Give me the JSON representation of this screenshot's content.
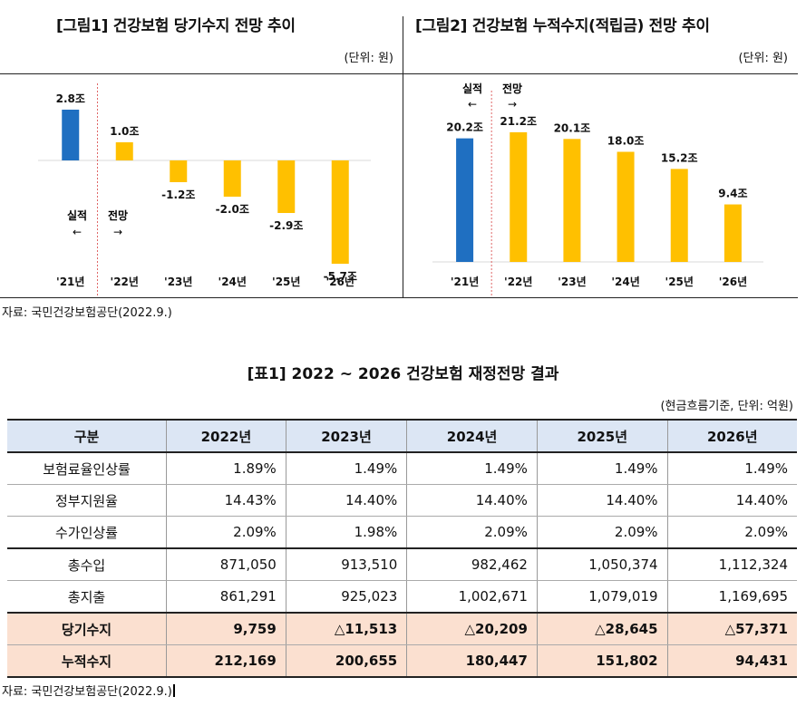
{
  "figure1": {
    "title": "[그림1] 건강보험 당기수지 전망 추이",
    "unit": "(단위: 원)",
    "marker_actual": "실적",
    "marker_forecast": "전망",
    "arrow_left": "←",
    "arrow_right": "→",
    "chart_data": {
      "type": "bar",
      "categories": [
        "'21년",
        "'22년",
        "'23년",
        "'24년",
        "'25년",
        "'26년"
      ],
      "values": [
        2.8,
        1.0,
        -1.2,
        -2.0,
        -2.9,
        -5.7
      ],
      "labels": [
        "2.8조",
        "1.0조",
        "-1.2조",
        "-2.0조",
        "-2.9조",
        "-5.7조"
      ],
      "colors": [
        "#1f6fc1",
        "#ffc000",
        "#ffc000",
        "#ffc000",
        "#ffc000",
        "#ffc000"
      ],
      "ylim": [
        -6.0,
        3.0
      ]
    }
  },
  "figure2": {
    "title": "[그림2] 건강보험 누적수지(적립금) 전망 추이",
    "unit": "(단위: 원)",
    "marker_actual": "실적",
    "marker_forecast": "전망",
    "arrow_left": "←",
    "arrow_right": "→",
    "chart_data": {
      "type": "bar",
      "categories": [
        "'21년",
        "'22년",
        "'23년",
        "'24년",
        "'25년",
        "'26년"
      ],
      "values": [
        20.2,
        21.2,
        20.1,
        18.0,
        15.2,
        9.4
      ],
      "labels": [
        "20.2조",
        "21.2조",
        "20.1조",
        "18.0조",
        "15.2조",
        "9.4조"
      ],
      "colors": [
        "#1f6fc1",
        "#ffc000",
        "#ffc000",
        "#ffc000",
        "#ffc000",
        "#ffc000"
      ],
      "ylim": [
        0,
        24
      ]
    }
  },
  "source_top": "자료: 국민건강보험공단(2022.9.)",
  "table": {
    "title": "[표1] 2022 ~ 2026 건강보험 재정전망 결과",
    "unit": "(현금흐름기준, 단위: 억원)",
    "headers": [
      "구분",
      "2022년",
      "2023년",
      "2024년",
      "2025년",
      "2026년"
    ],
    "rows": [
      [
        "보험료율인상률",
        "1.89%",
        "1.49%",
        "1.49%",
        "1.49%",
        "1.49%"
      ],
      [
        "정부지원율",
        "14.43%",
        "14.40%",
        "14.40%",
        "14.40%",
        "14.40%"
      ],
      [
        "수가인상률",
        "2.09%",
        "1.98%",
        "2.09%",
        "2.09%",
        "2.09%"
      ],
      [
        "총수입",
        "871,050",
        "913,510",
        "982,462",
        "1,050,374",
        "1,112,324"
      ],
      [
        "총지출",
        "861,291",
        "925,023",
        "1,002,671",
        "1,079,019",
        "1,169,695"
      ],
      [
        "당기수지",
        "9,759",
        "△11,513",
        "△20,209",
        "△28,645",
        "△57,371"
      ],
      [
        "누적수지",
        "212,169",
        "200,655",
        "180,447",
        "151,802",
        "94,431"
      ]
    ]
  },
  "source_bottom": "자료: 국민건강보험공단(2022.9.)"
}
